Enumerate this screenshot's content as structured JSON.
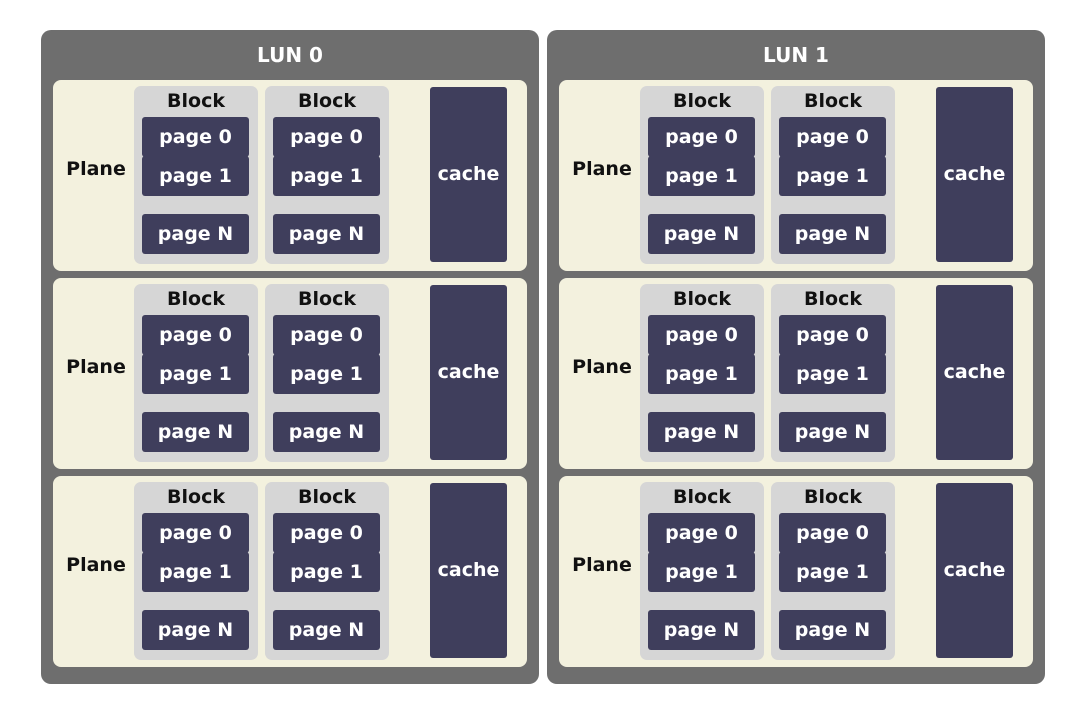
{
  "luns": [
    {
      "title": "LUN 0",
      "planes": [
        {
          "label": "Plane",
          "blocks": [
            {
              "label": "Block",
              "pages": [
                "page 0",
                "page 1",
                "page N"
              ]
            },
            {
              "label": "Block",
              "pages": [
                "page 0",
                "page 1",
                "page N"
              ]
            }
          ],
          "cache": "cache"
        },
        {
          "label": "Plane",
          "blocks": [
            {
              "label": "Block",
              "pages": [
                "page 0",
                "page 1",
                "page N"
              ]
            },
            {
              "label": "Block",
              "pages": [
                "page 0",
                "page 1",
                "page N"
              ]
            }
          ],
          "cache": "cache"
        },
        {
          "label": "Plane",
          "blocks": [
            {
              "label": "Block",
              "pages": [
                "page 0",
                "page 1",
                "page N"
              ]
            },
            {
              "label": "Block",
              "pages": [
                "page 0",
                "page 1",
                "page N"
              ]
            }
          ],
          "cache": "cache"
        }
      ]
    },
    {
      "title": "LUN 1",
      "planes": [
        {
          "label": "Plane",
          "blocks": [
            {
              "label": "Block",
              "pages": [
                "page 0",
                "page 1",
                "page N"
              ]
            },
            {
              "label": "Block",
              "pages": [
                "page 0",
                "page 1",
                "page N"
              ]
            }
          ],
          "cache": "cache"
        },
        {
          "label": "Plane",
          "blocks": [
            {
              "label": "Block",
              "pages": [
                "page 0",
                "page 1",
                "page N"
              ]
            },
            {
              "label": "Block",
              "pages": [
                "page 0",
                "page 1",
                "page N"
              ]
            }
          ],
          "cache": "cache"
        },
        {
          "label": "Plane",
          "blocks": [
            {
              "label": "Block",
              "pages": [
                "page 0",
                "page 1",
                "page N"
              ]
            },
            {
              "label": "Block",
              "pages": [
                "page 0",
                "page 1",
                "page N"
              ]
            }
          ],
          "cache": "cache"
        }
      ]
    }
  ],
  "colors": {
    "lun_background": "#6e6e6e",
    "plane_background": "#f3f1de",
    "block_background": "#d6d6d6",
    "page_and_cache_fill": "#3f3e5c",
    "text_light": "#ffffff",
    "text_dark": "#111111"
  }
}
